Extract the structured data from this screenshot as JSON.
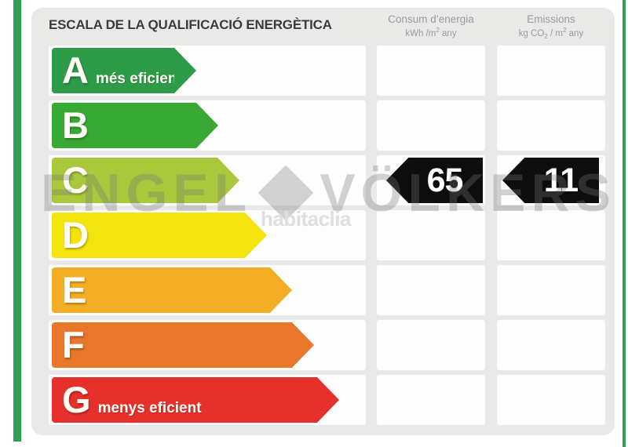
{
  "header": {
    "title": "ESCALA DE LA QUALIFICACIÓ ENERGÈTICA",
    "col_consum": {
      "name": "Consum d’energia",
      "unit_a": "kWh /m",
      "unit_sup": "2",
      "unit_b": " any"
    },
    "col_emissions": {
      "name": "Emissions",
      "unit_a": "kg CO",
      "unit_sub": "2",
      "unit_b": " / m",
      "unit_sup": "2",
      "unit_c": " any"
    }
  },
  "scale": {
    "rows": [
      {
        "letter": "A",
        "label": "més eficient",
        "color": "#2d9b48",
        "arrow_tip_x": 250
      },
      {
        "letter": "B",
        "label": "",
        "color": "#39a935",
        "arrow_tip_x": 278
      },
      {
        "letter": "C",
        "label": "",
        "color": "#a9c83b",
        "arrow_tip_x": 305
      },
      {
        "letter": "D",
        "label": "",
        "color": "#f2e40c",
        "arrow_tip_x": 340
      },
      {
        "letter": "E",
        "label": "",
        "color": "#f3ae25",
        "arrow_tip_x": 372
      },
      {
        "letter": "F",
        "label": "",
        "color": "#e8762b",
        "arrow_tip_x": 400
      },
      {
        "letter": "G",
        "label": "menys eficient",
        "color": "#e6302c",
        "arrow_tip_x": 432
      }
    ],
    "rated_letter": "C"
  },
  "values": {
    "consum": "65",
    "emissions": "11"
  },
  "watermarks": {
    "brand1_left": "ENGEL",
    "brand1_right": "VÖLKERS",
    "brand2": "habitaclia"
  },
  "colors": {
    "accent_green": "#2f9e52",
    "panel_bg": "#e9e9e7",
    "slot_bg": "#fdfdfd",
    "value_arrow_bg": "#0d0d0d",
    "header_text": "#9b9b9b",
    "title_text": "#3b3b3b"
  },
  "chart_data": {
    "type": "bar",
    "title": "ESCALA DE LA QUALIFICACIÓ ENERGÈTICA",
    "categories": [
      "A",
      "B",
      "C",
      "D",
      "E",
      "F",
      "G"
    ],
    "category_labels": {
      "A": "més eficient",
      "G": "menys eficient"
    },
    "rating": "C",
    "series": [
      {
        "name": "Consum d'energia (kWh/m2 any)",
        "values": [
          null,
          null,
          65,
          null,
          null,
          null,
          null
        ]
      },
      {
        "name": "Emissions (kg CO2/m2 any)",
        "values": [
          null,
          null,
          11,
          null,
          null,
          null,
          null
        ]
      }
    ],
    "bar_colors": [
      "#2d9b48",
      "#39a935",
      "#a9c83b",
      "#f2e40c",
      "#f3ae25",
      "#e8762b",
      "#e6302c"
    ],
    "legend_position": "none",
    "grid": false
  }
}
